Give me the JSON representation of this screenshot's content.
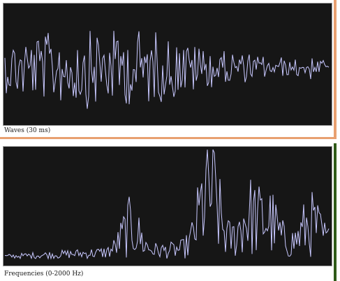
{
  "waves_panel": {
    "caption": "Waves (30 ms)"
  },
  "frequencies_panel": {
    "caption": "Frequencies (0-2000 Hz)"
  },
  "colors": {
    "plot_background": "#161616",
    "trace": "#c8c8ff",
    "waves_accent": "#e8a070",
    "frequencies_accent": "#2f5a18"
  }
}
